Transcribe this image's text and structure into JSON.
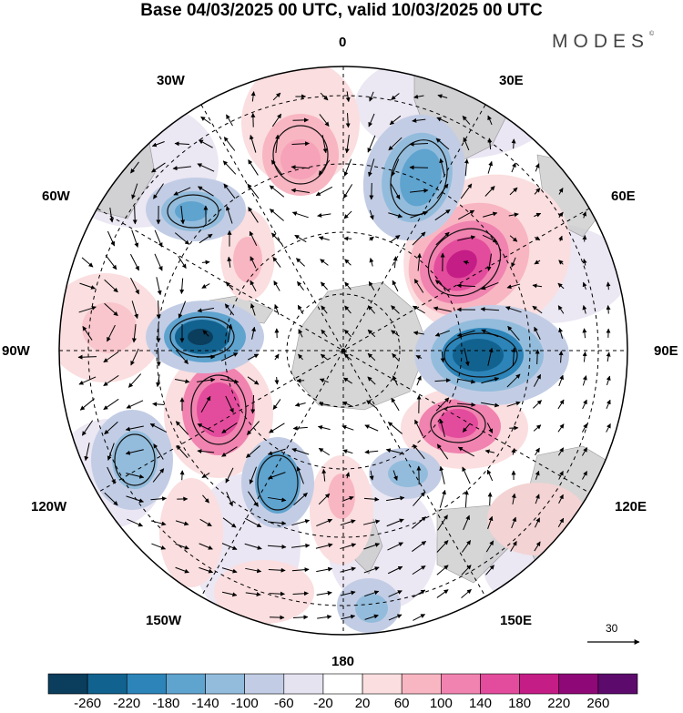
{
  "title": "Base 04/03/2025 00 UTC, valid 10/03/2025 00 UTC",
  "brand": "MODES",
  "brand_mark": "©",
  "lon_labels": {
    "top": "0",
    "top_right": "30E",
    "right_upper": "60E",
    "right": "90E",
    "right_lower": "120E",
    "bottom_right": "150E",
    "bottom": "180",
    "bottom_left": "150W",
    "left_lower": "120W",
    "left": "90W",
    "left_upper": "60W",
    "top_left": "30W"
  },
  "vector_reference": "30",
  "colorbar": {
    "labels": [
      "-260",
      "-220",
      "-180",
      "-140",
      "-100",
      "-60",
      "-20",
      "20",
      "60",
      "100",
      "140",
      "180",
      "220",
      "260"
    ],
    "colors": [
      "#0b3d5c",
      "#12628f",
      "#2c84b8",
      "#5fa3cf",
      "#93bcdc",
      "#c2cde5",
      "#e6e3f1",
      "#ffffff",
      "#fbdedf",
      "#f8b6c2",
      "#f183b0",
      "#e34c9c",
      "#c41d86",
      "#8f0878",
      "#5c0a6b"
    ]
  }
}
